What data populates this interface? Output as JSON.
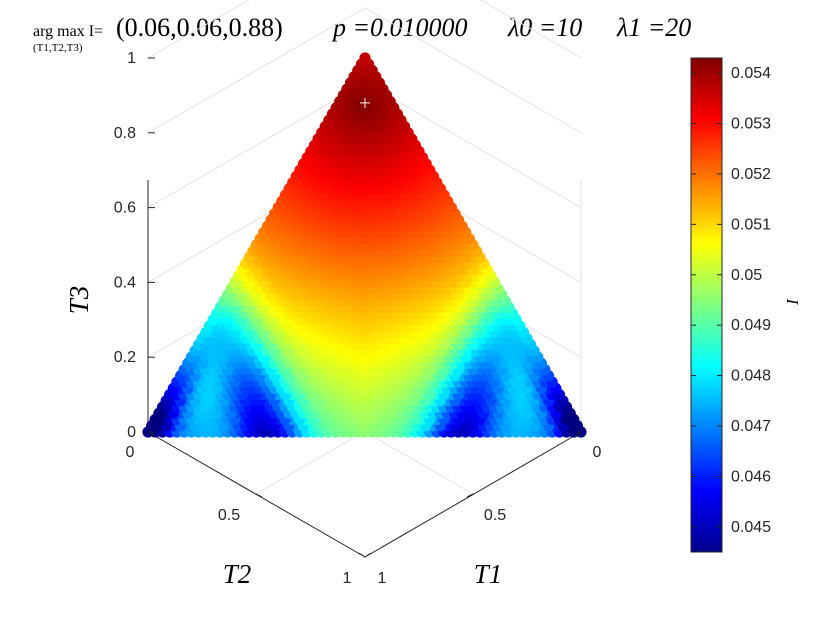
{
  "chart_data": {
    "type": "scatter",
    "title": {
      "argmax_label": "arg max I=",
      "argmax_sub": "(T1,T2,T3)",
      "argmax_value": "(0.06,0.06,0.88)",
      "p_text": "p =0.010000",
      "lambda0_text": "λ0 =10",
      "lambda1_text": "λ1 =20"
    },
    "axes": {
      "x": {
        "label": "T1",
        "ticks": [
          "0",
          "0.5",
          "1"
        ]
      },
      "y": {
        "label": "T2",
        "ticks": [
          "0",
          "0.5",
          "1"
        ]
      },
      "z": {
        "label": "T3",
        "ticks": [
          "0",
          "0.2",
          "0.4",
          "0.6",
          "0.8",
          "1"
        ],
        "lim": [
          0,
          1
        ]
      }
    },
    "color_axis": {
      "label": "I",
      "colormap": "jet",
      "range": [
        0.0445,
        0.0543
      ],
      "ticks": [
        "0.045",
        "0.046",
        "0.047",
        "0.048",
        "0.049",
        "0.05",
        "0.051",
        "0.052",
        "0.053",
        "0.054"
      ]
    },
    "constraint": "T1 + T2 + T3 = 1",
    "maximum": {
      "T1": 0.06,
      "T2": 0.06,
      "T3": 0.88,
      "marker": "+"
    },
    "grid": true
  }
}
